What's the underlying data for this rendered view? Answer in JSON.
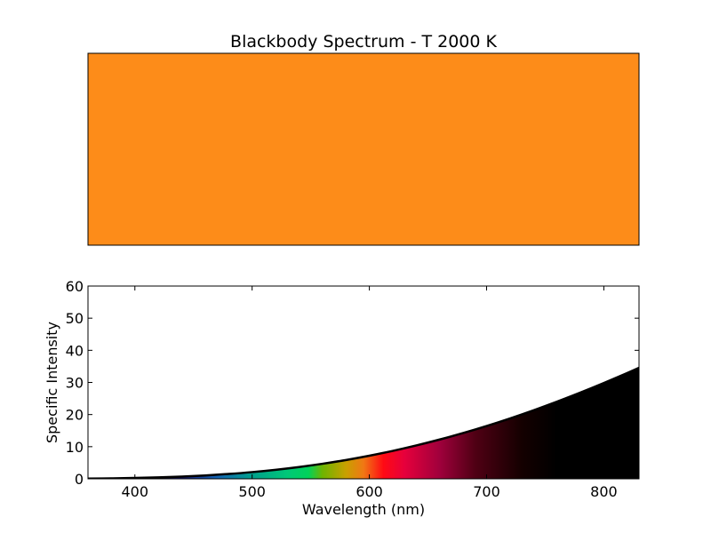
{
  "chart_data": [
    {
      "type": "area",
      "title": "Blackbody Spectrum - T 2000 K",
      "panel": "color-swatch",
      "swatch_color": "#fd8c19",
      "axes_visible": false
    },
    {
      "type": "area",
      "title": "",
      "xlabel": "Wavelength (nm)",
      "ylabel": "Specific Intensity",
      "xlim": [
        360,
        830
      ],
      "ylim": [
        0,
        60
      ],
      "xticks": [
        400,
        500,
        600,
        700,
        800
      ],
      "yticks": [
        0,
        10,
        20,
        30,
        40,
        50,
        60
      ],
      "x": [
        360,
        380,
        400,
        420,
        440,
        460,
        480,
        500,
        520,
        540,
        560,
        580,
        600,
        620,
        640,
        660,
        680,
        700,
        720,
        740,
        760,
        780,
        800,
        820,
        830
      ],
      "y": [
        0.07,
        0.14,
        0.26,
        0.44,
        0.7,
        1.05,
        1.51,
        2.09,
        2.81,
        3.67,
        4.68,
        5.85,
        7.19,
        8.7,
        10.38,
        12.23,
        14.25,
        16.44,
        18.8,
        21.32,
        24.0,
        26.83,
        29.81,
        32.93,
        34.54
      ],
      "grid": false,
      "legend": "none",
      "line_color": "#000000",
      "fill": "visible-spectrum-gradient",
      "gradient_stops": [
        {
          "x": 360,
          "color": "#000000"
        },
        {
          "x": 400,
          "color": "#0a0015"
        },
        {
          "x": 440,
          "color": "#1b1d7a"
        },
        {
          "x": 470,
          "color": "#1464b4"
        },
        {
          "x": 500,
          "color": "#00a08c"
        },
        {
          "x": 530,
          "color": "#00c878"
        },
        {
          "x": 548,
          "color": "#00d25a"
        },
        {
          "x": 560,
          "color": "#6eb400"
        },
        {
          "x": 580,
          "color": "#c8a000"
        },
        {
          "x": 595,
          "color": "#f07814"
        },
        {
          "x": 612,
          "color": "#ff0a14"
        },
        {
          "x": 630,
          "color": "#e6003c"
        },
        {
          "x": 660,
          "color": "#a0003c"
        },
        {
          "x": 690,
          "color": "#500014"
        },
        {
          "x": 730,
          "color": "#140000"
        },
        {
          "x": 760,
          "color": "#000000"
        },
        {
          "x": 830,
          "color": "#000000"
        }
      ]
    }
  ]
}
